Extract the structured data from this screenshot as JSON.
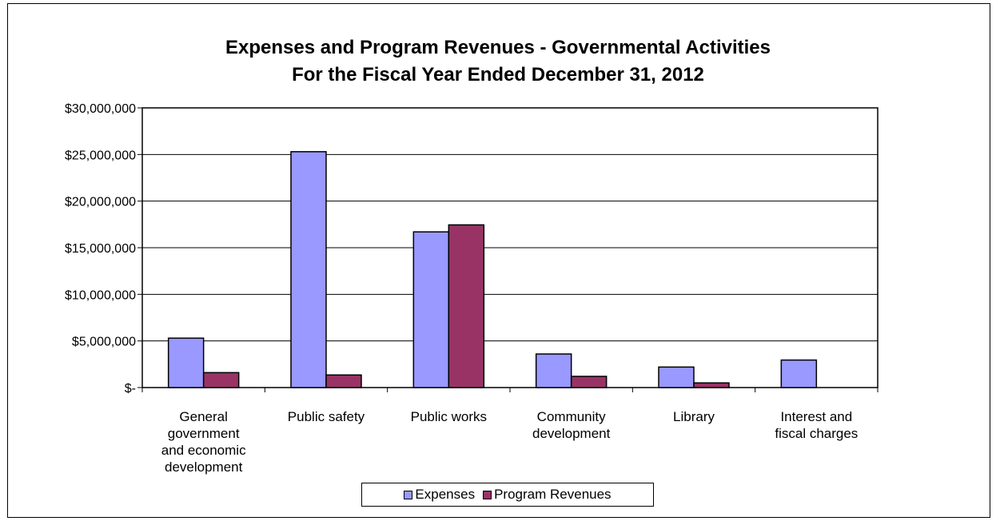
{
  "chart_data": {
    "type": "bar",
    "title_lines": [
      "Expenses and Program Revenues - Governmental Activities",
      "For the Fiscal Year Ended December 31, 2012"
    ],
    "categories": [
      [
        "General",
        "government",
        "and economic",
        "development"
      ],
      [
        "Public safety"
      ],
      [
        "Public works"
      ],
      [
        "Community",
        "development"
      ],
      [
        "Library"
      ],
      [
        "Interest and",
        "fiscal charges"
      ]
    ],
    "series": [
      {
        "name": "Expenses",
        "color": "#9999ff",
        "values": [
          5300000,
          25300000,
          16700000,
          3600000,
          2200000,
          2950000
        ]
      },
      {
        "name": "Program Revenues",
        "color": "#993366",
        "values": [
          1600000,
          1350000,
          17450000,
          1200000,
          500000,
          0
        ]
      }
    ],
    "ylim": [
      0,
      30000000
    ],
    "y_ticks": [
      {
        "value": 0,
        "label": "$-"
      },
      {
        "value": 5000000,
        "label": "$5,000,000"
      },
      {
        "value": 10000000,
        "label": "$10,000,000"
      },
      {
        "value": 15000000,
        "label": "$15,000,000"
      },
      {
        "value": 20000000,
        "label": "$20,000,000"
      },
      {
        "value": 25000000,
        "label": "$25,000,000"
      },
      {
        "value": 30000000,
        "label": "$30,000,000"
      }
    ],
    "grid": true,
    "legend": "bottom"
  }
}
